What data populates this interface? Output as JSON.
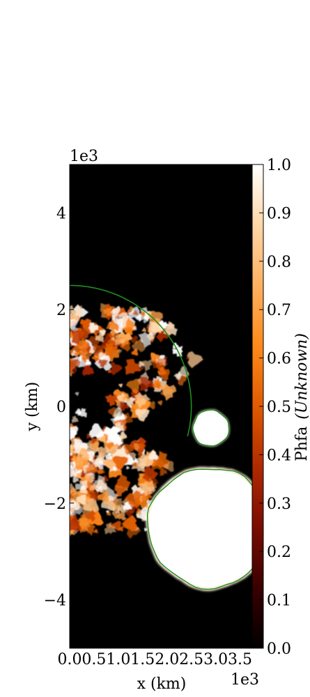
{
  "chart_data": {
    "type": "heatmap",
    "title": "",
    "xlabel": "x  (km)",
    "ylabel": "y  (km)",
    "x_multiplier": "1e3",
    "y_multiplier": "1e3",
    "xlim": [
      0.0,
      3.75
    ],
    "ylim": [
      -5.0,
      5.0
    ],
    "xticks": [
      "0.0",
      "0.5",
      "1.0",
      "1.5",
      "2.0",
      "2.5",
      "3.0",
      "3.5"
    ],
    "yticks": [
      "−4",
      "−2",
      "0",
      "2",
      "4"
    ],
    "colorbar": {
      "label": "Phfa",
      "units": "(Unknown)",
      "range": [
        0.0,
        1.0
      ],
      "ticks": [
        "0.0",
        "0.1",
        "0.2",
        "0.3",
        "0.4",
        "0.5",
        "0.6",
        "0.7",
        "0.8",
        "0.9",
        "1.0"
      ],
      "colormap": [
        "#000000",
        "#3a0000",
        "#7a0c00",
        "#b02a00",
        "#e05a00",
        "#ff8a1a",
        "#ffb060",
        "#ffd6a8",
        "#ffffff"
      ]
    },
    "contour_color": "#1f8f1f",
    "features": [
      {
        "kind": "bubble",
        "center": [
          2.85,
          -2.5
        ],
        "radius": 1.27,
        "value": 1.0
      },
      {
        "kind": "bubble",
        "center": [
          2.9,
          -0.45
        ],
        "radius": 0.38,
        "value": 1.0
      },
      {
        "kind": "mixing-region",
        "x_range": [
          0.0,
          2.6
        ],
        "y_range": [
          -2.6,
          2.0
        ],
        "value": 0.75
      },
      {
        "kind": "contour-arc",
        "radius": 2.5
      }
    ]
  }
}
